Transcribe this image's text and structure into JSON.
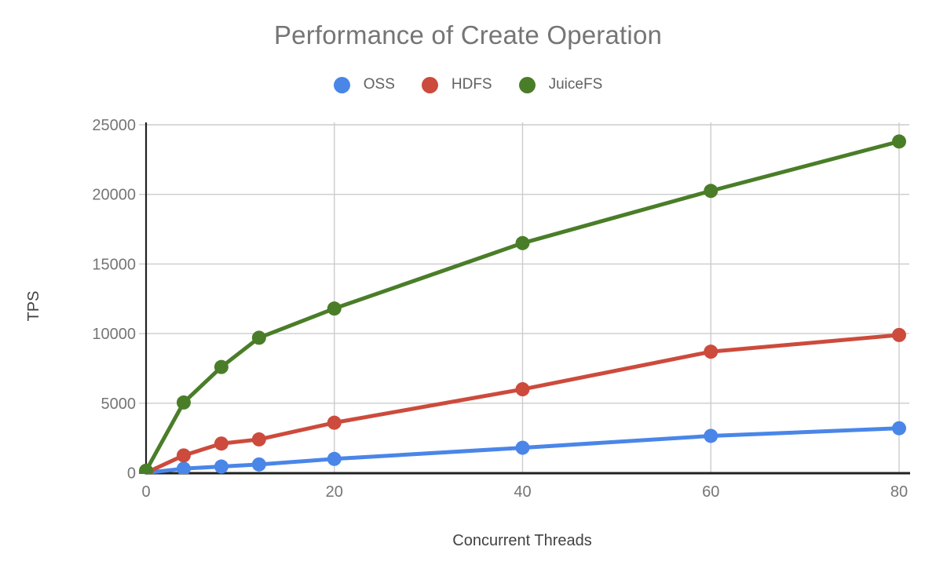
{
  "colors": {
    "background": "#ffffff",
    "grid": "#cccccc",
    "axis": "#212121",
    "title_text": "#757575",
    "tick_label": "#757575",
    "axis_title": "#424242",
    "legend_label": "#616161"
  },
  "chart_data": {
    "type": "line",
    "title": "Performance of Create Operation",
    "xlabel": "Concurrent Threads",
    "ylabel": "TPS",
    "x": [
      0,
      4,
      8,
      12,
      20,
      40,
      60,
      80
    ],
    "series": [
      {
        "name": "OSS",
        "color": "#4A86E8",
        "values": [
          0,
          300,
          450,
          600,
          1000,
          1800,
          2650,
          3200
        ]
      },
      {
        "name": "HDFS",
        "color": "#CC4B3C",
        "values": [
          0,
          1250,
          2100,
          2400,
          3600,
          6000,
          8700,
          9900
        ]
      },
      {
        "name": "JuiceFS",
        "color": "#4A7D28",
        "values": [
          150,
          5050,
          7600,
          9700,
          11800,
          16500,
          20250,
          23800
        ]
      }
    ],
    "xlim": [
      0,
      80
    ],
    "ylim": [
      0,
      25000
    ],
    "x_ticks": [
      0,
      20,
      40,
      60,
      80
    ],
    "y_ticks": [
      0,
      5000,
      10000,
      15000,
      20000,
      25000
    ],
    "grid": true,
    "legend_position": "top",
    "marker": "circle",
    "line_width": 5,
    "marker_radius": 9
  }
}
